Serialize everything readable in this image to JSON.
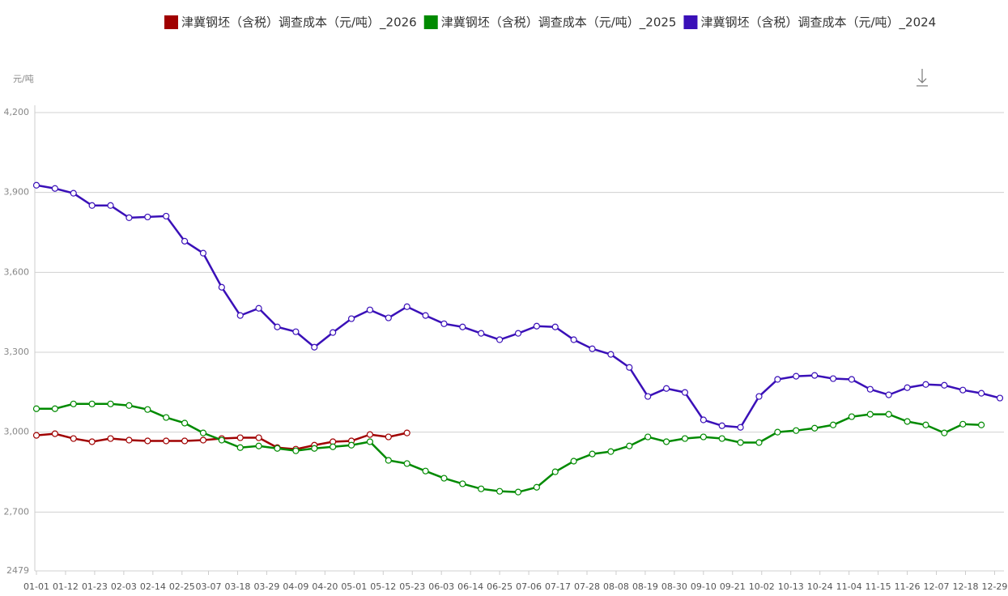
{
  "chart_data": {
    "type": "line",
    "y_label": "元/吨",
    "x": [
      "01-01",
      "01-08",
      "01-15",
      "01-22",
      "01-29",
      "02-05",
      "02-12",
      "02-19",
      "02-26",
      "03-05",
      "03-12",
      "03-19",
      "03-26",
      "04-02",
      "04-09",
      "04-16",
      "04-23",
      "04-30",
      "05-07",
      "05-14",
      "05-21",
      "05-28",
      "06-04",
      "06-11",
      "06-18",
      "06-25",
      "07-02",
      "07-09",
      "07-16",
      "07-23",
      "07-30",
      "08-06",
      "08-13",
      "08-20",
      "08-27",
      "09-03",
      "09-10",
      "09-17",
      "09-24",
      "10-01",
      "10-08",
      "10-15",
      "10-22",
      "10-29",
      "11-05",
      "11-12",
      "11-19",
      "11-26",
      "12-03",
      "12-10",
      "12-17",
      "12-24",
      "12-31"
    ],
    "xlim": [
      "01-01",
      "12-31"
    ],
    "xticks": [
      "01-01",
      "01-12",
      "01-23",
      "02-03",
      "02-14",
      "02-25",
      "03-07",
      "03-18",
      "03-29",
      "04-09",
      "04-20",
      "05-01",
      "05-12",
      "05-23",
      "06-03",
      "06-14",
      "06-25",
      "07-06",
      "07-17",
      "07-28",
      "08-08",
      "08-19",
      "08-30",
      "09-10",
      "09-21",
      "10-02",
      "10-13",
      "10-24",
      "11-04",
      "11-15",
      "11-26",
      "12-07",
      "12-18",
      "12-29"
    ],
    "ylim": [
      2479,
      4200
    ],
    "yticks": [
      2479,
      {
        "value": 2700,
        "label": "2,700"
      },
      {
        "value": 3000,
        "label": "3,000"
      },
      {
        "value": 3300,
        "label": "3,300"
      },
      {
        "value": 3600,
        "label": "3,600"
      },
      {
        "value": 3900,
        "label": "3,900"
      },
      {
        "value": 4200,
        "label": "4,200"
      }
    ],
    "grid": true,
    "series": [
      {
        "name": "津冀钢坯（含税）调查成本（元/吨）_2026",
        "color": "#a00000",
        "values": [
          2988,
          2994,
          2976,
          2964,
          2976,
          2970,
          2967,
          2967,
          2967,
          2970,
          2976,
          2979,
          2979,
          2942,
          2936,
          2951,
          2964,
          2967,
          2991,
          2982,
          2997,
          null,
          null,
          null,
          null,
          null,
          null,
          null,
          null,
          null,
          null,
          null,
          null,
          null,
          null,
          null,
          null,
          null,
          null,
          null,
          null,
          null,
          null,
          null,
          null,
          null,
          null,
          null,
          null,
          null,
          null,
          null,
          null
        ]
      },
      {
        "name": "津冀钢坯（含税）调查成本（元/吨）_2025",
        "color": "#008a00",
        "values": [
          3088,
          3088,
          3106,
          3106,
          3106,
          3100,
          3085,
          3055,
          3034,
          2997,
          2970,
          2942,
          2948,
          2939,
          2930,
          2939,
          2945,
          2951,
          2964,
          2894,
          2882,
          2854,
          2827,
          2806,
          2787,
          2778,
          2775,
          2793,
          2851,
          2891,
          2918,
          2927,
          2948,
          2982,
          2964,
          2976,
          2982,
          2976,
          2961,
          2961,
          3000,
          3006,
          3015,
          3027,
          3058,
          3067,
          3067,
          3040,
          3027,
          2997,
          3030,
          3027,
          null
        ]
      },
      {
        "name": "津冀钢坯（含税）调查成本（元/吨）_2024",
        "color": "#3a10b8",
        "values": [
          3927,
          3915,
          3897,
          3851,
          3851,
          3805,
          3808,
          3811,
          3717,
          3672,
          3544,
          3438,
          3465,
          3395,
          3377,
          3319,
          3374,
          3426,
          3459,
          3429,
          3471,
          3438,
          3407,
          3395,
          3371,
          3347,
          3371,
          3398,
          3395,
          3347,
          3313,
          3292,
          3243,
          3134,
          3164,
          3149,
          3046,
          3024,
          3018,
          3134,
          3198,
          3210,
          3213,
          3201,
          3198,
          3161,
          3140,
          3167,
          3179,
          3176,
          3158,
          3146,
          3128
        ]
      }
    ]
  }
}
